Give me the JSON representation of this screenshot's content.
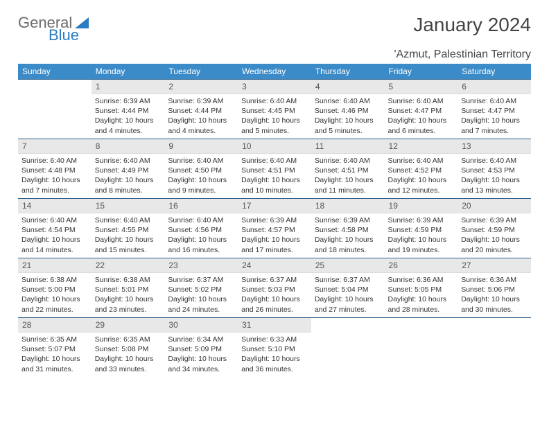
{
  "logo": {
    "word1": "General",
    "word2": "Blue",
    "color_gray": "#6b6b6b",
    "color_blue": "#2b7cc0"
  },
  "title": "January 2024",
  "location": "'Azmut, Palestinian Territory",
  "header_bg": "#3b8bc8",
  "border_color": "#2b5f8a",
  "daynum_bg": "#e8e8e8",
  "weekdays": [
    "Sunday",
    "Monday",
    "Tuesday",
    "Wednesday",
    "Thursday",
    "Friday",
    "Saturday"
  ],
  "weeks": [
    [
      null,
      {
        "n": "1",
        "sr": "6:39 AM",
        "ss": "4:44 PM",
        "dl": "10 hours and 4 minutes."
      },
      {
        "n": "2",
        "sr": "6:39 AM",
        "ss": "4:44 PM",
        "dl": "10 hours and 4 minutes."
      },
      {
        "n": "3",
        "sr": "6:40 AM",
        "ss": "4:45 PM",
        "dl": "10 hours and 5 minutes."
      },
      {
        "n": "4",
        "sr": "6:40 AM",
        "ss": "4:46 PM",
        "dl": "10 hours and 5 minutes."
      },
      {
        "n": "5",
        "sr": "6:40 AM",
        "ss": "4:47 PM",
        "dl": "10 hours and 6 minutes."
      },
      {
        "n": "6",
        "sr": "6:40 AM",
        "ss": "4:47 PM",
        "dl": "10 hours and 7 minutes."
      }
    ],
    [
      {
        "n": "7",
        "sr": "6:40 AM",
        "ss": "4:48 PM",
        "dl": "10 hours and 7 minutes."
      },
      {
        "n": "8",
        "sr": "6:40 AM",
        "ss": "4:49 PM",
        "dl": "10 hours and 8 minutes."
      },
      {
        "n": "9",
        "sr": "6:40 AM",
        "ss": "4:50 PM",
        "dl": "10 hours and 9 minutes."
      },
      {
        "n": "10",
        "sr": "6:40 AM",
        "ss": "4:51 PM",
        "dl": "10 hours and 10 minutes."
      },
      {
        "n": "11",
        "sr": "6:40 AM",
        "ss": "4:51 PM",
        "dl": "10 hours and 11 minutes."
      },
      {
        "n": "12",
        "sr": "6:40 AM",
        "ss": "4:52 PM",
        "dl": "10 hours and 12 minutes."
      },
      {
        "n": "13",
        "sr": "6:40 AM",
        "ss": "4:53 PM",
        "dl": "10 hours and 13 minutes."
      }
    ],
    [
      {
        "n": "14",
        "sr": "6:40 AM",
        "ss": "4:54 PM",
        "dl": "10 hours and 14 minutes."
      },
      {
        "n": "15",
        "sr": "6:40 AM",
        "ss": "4:55 PM",
        "dl": "10 hours and 15 minutes."
      },
      {
        "n": "16",
        "sr": "6:40 AM",
        "ss": "4:56 PM",
        "dl": "10 hours and 16 minutes."
      },
      {
        "n": "17",
        "sr": "6:39 AM",
        "ss": "4:57 PM",
        "dl": "10 hours and 17 minutes."
      },
      {
        "n": "18",
        "sr": "6:39 AM",
        "ss": "4:58 PM",
        "dl": "10 hours and 18 minutes."
      },
      {
        "n": "19",
        "sr": "6:39 AM",
        "ss": "4:59 PM",
        "dl": "10 hours and 19 minutes."
      },
      {
        "n": "20",
        "sr": "6:39 AM",
        "ss": "4:59 PM",
        "dl": "10 hours and 20 minutes."
      }
    ],
    [
      {
        "n": "21",
        "sr": "6:38 AM",
        "ss": "5:00 PM",
        "dl": "10 hours and 22 minutes."
      },
      {
        "n": "22",
        "sr": "6:38 AM",
        "ss": "5:01 PM",
        "dl": "10 hours and 23 minutes."
      },
      {
        "n": "23",
        "sr": "6:37 AM",
        "ss": "5:02 PM",
        "dl": "10 hours and 24 minutes."
      },
      {
        "n": "24",
        "sr": "6:37 AM",
        "ss": "5:03 PM",
        "dl": "10 hours and 26 minutes."
      },
      {
        "n": "25",
        "sr": "6:37 AM",
        "ss": "5:04 PM",
        "dl": "10 hours and 27 minutes."
      },
      {
        "n": "26",
        "sr": "6:36 AM",
        "ss": "5:05 PM",
        "dl": "10 hours and 28 minutes."
      },
      {
        "n": "27",
        "sr": "6:36 AM",
        "ss": "5:06 PM",
        "dl": "10 hours and 30 minutes."
      }
    ],
    [
      {
        "n": "28",
        "sr": "6:35 AM",
        "ss": "5:07 PM",
        "dl": "10 hours and 31 minutes."
      },
      {
        "n": "29",
        "sr": "6:35 AM",
        "ss": "5:08 PM",
        "dl": "10 hours and 33 minutes."
      },
      {
        "n": "30",
        "sr": "6:34 AM",
        "ss": "5:09 PM",
        "dl": "10 hours and 34 minutes."
      },
      {
        "n": "31",
        "sr": "6:33 AM",
        "ss": "5:10 PM",
        "dl": "10 hours and 36 minutes."
      },
      null,
      null,
      null
    ]
  ],
  "labels": {
    "sunrise": "Sunrise:",
    "sunset": "Sunset:",
    "daylight": "Daylight:"
  }
}
